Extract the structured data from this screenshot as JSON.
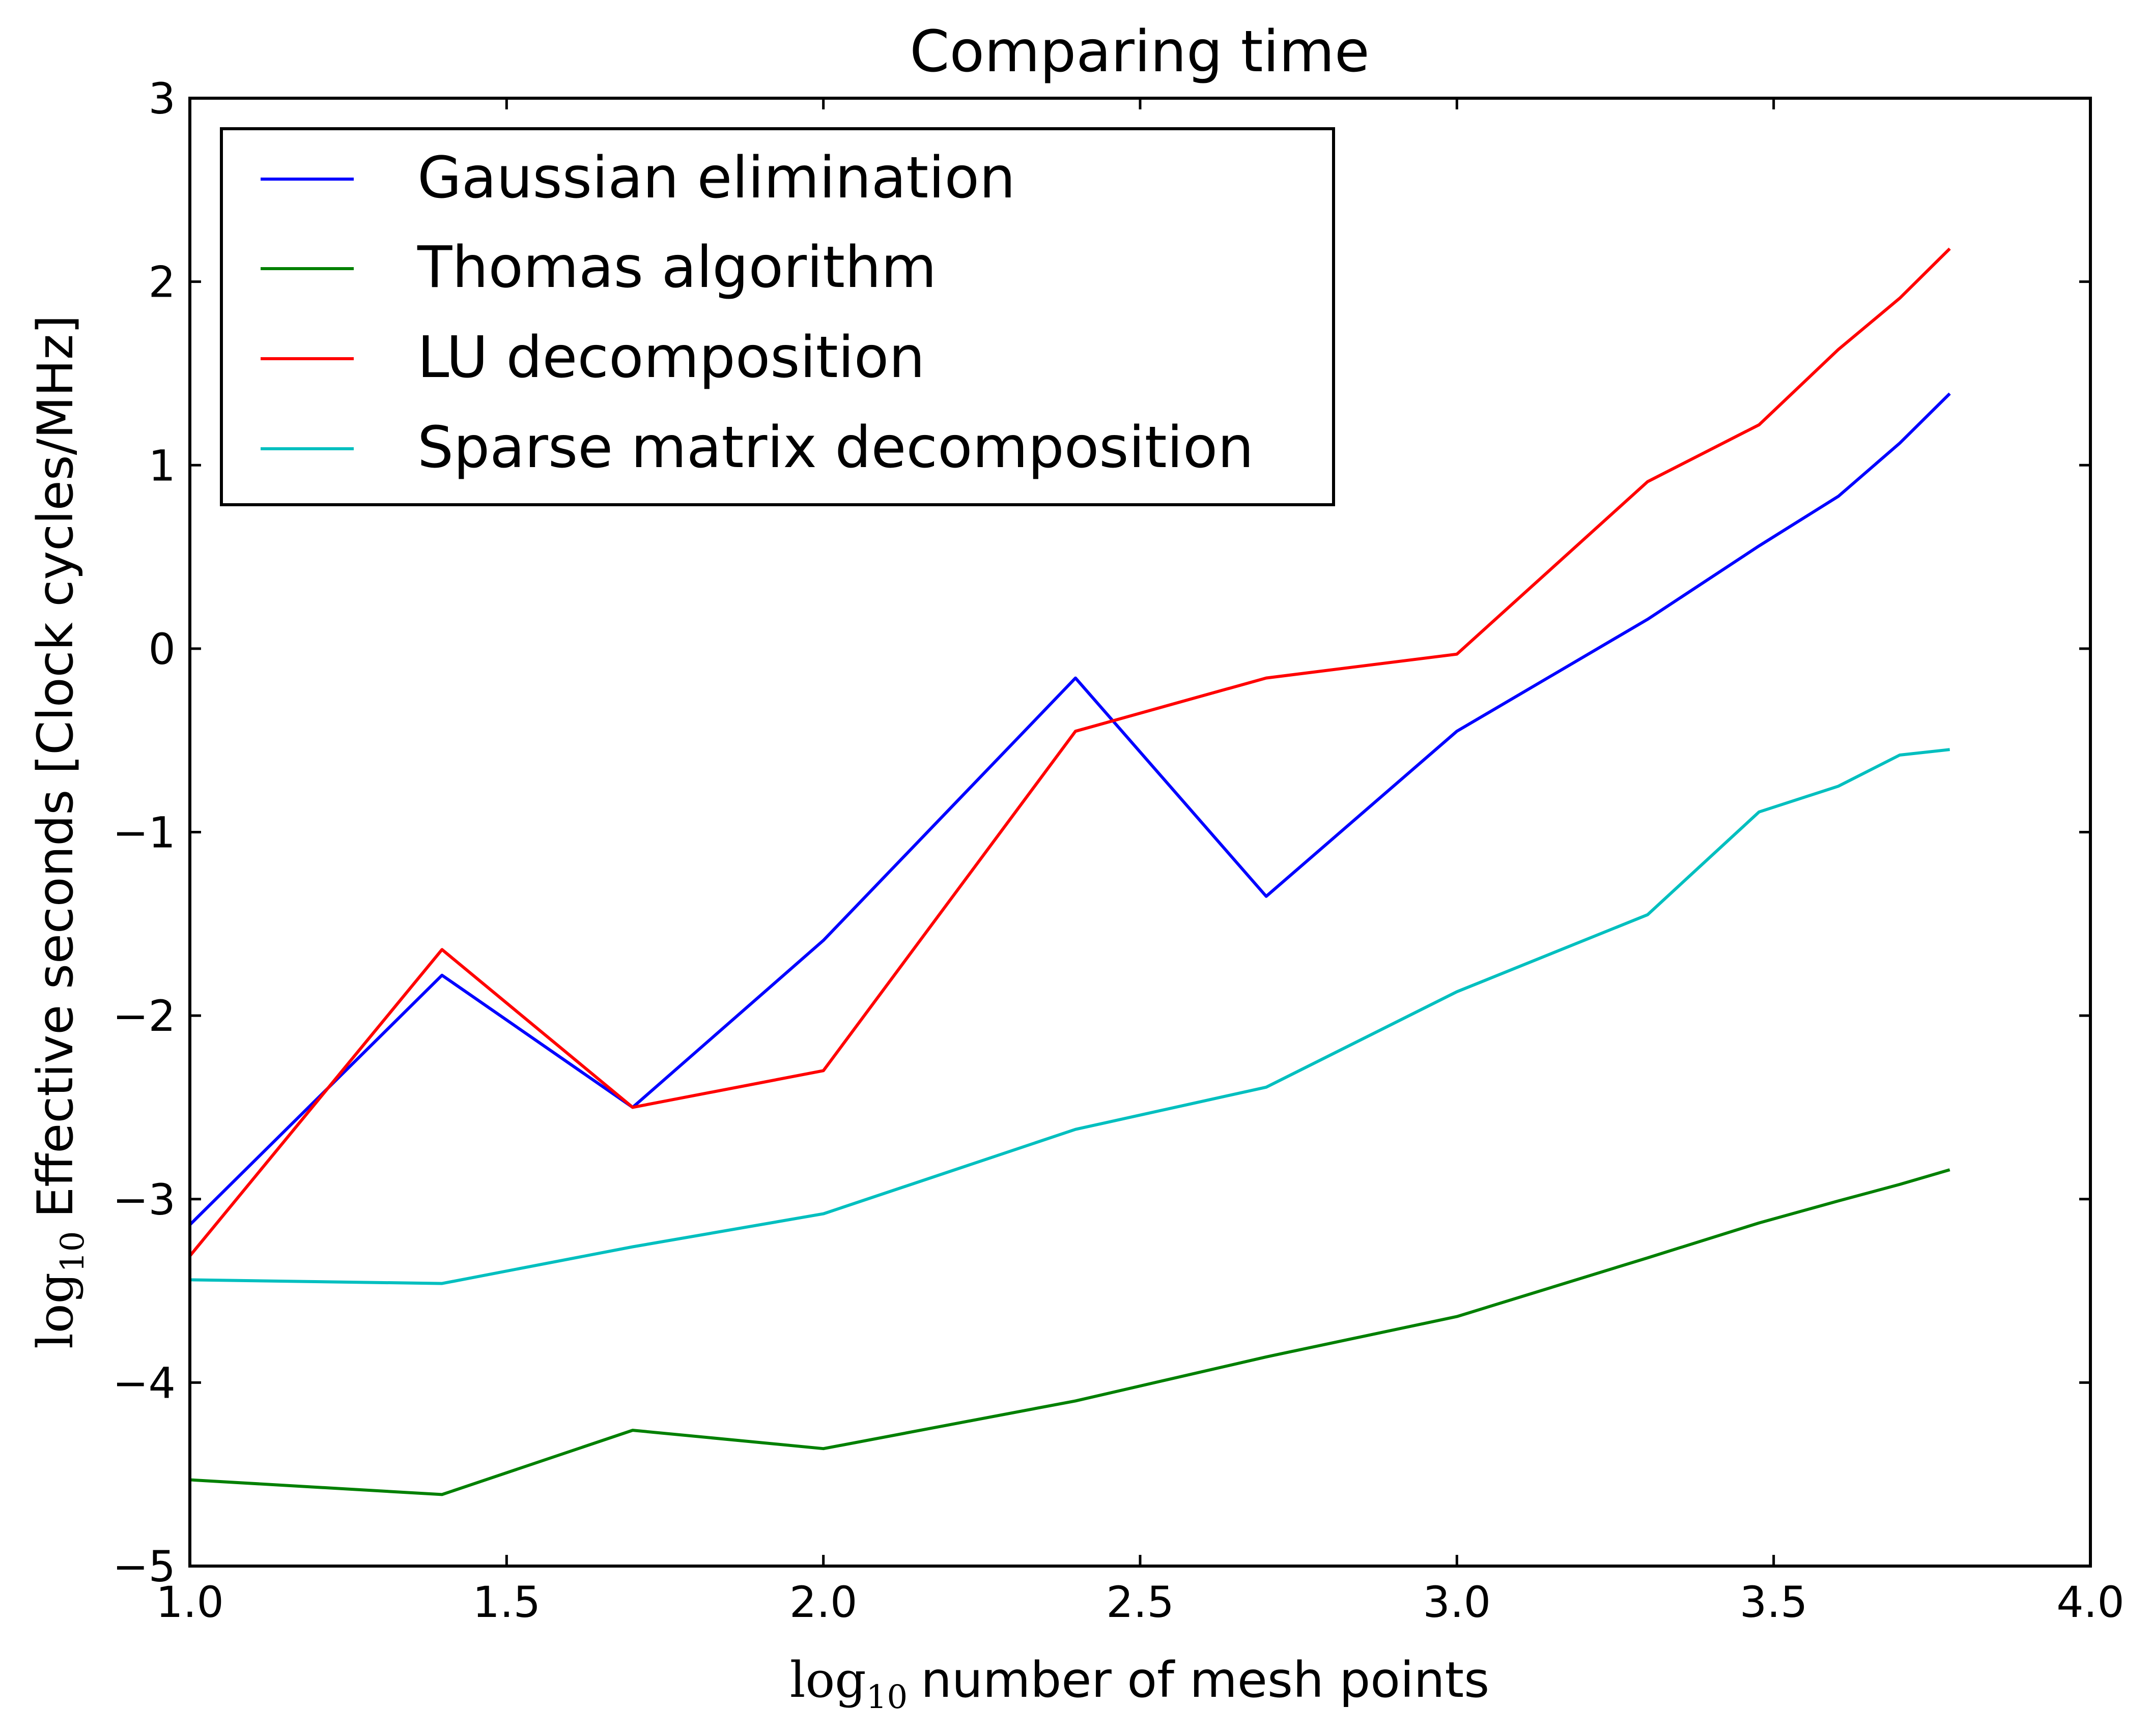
{
  "chart_data": {
    "type": "line",
    "title": "Comparing time",
    "xlabel": {
      "prefix": "log",
      "subscript": "10",
      "text": "number of mesh points"
    },
    "ylabel": {
      "prefix": "log",
      "subscript": "10",
      "text": "Effective seconds [Clock cycles/MHz]"
    },
    "xlim": [
      1.0,
      4.0
    ],
    "ylim": [
      -5,
      3
    ],
    "xticks": [
      1.0,
      1.5,
      2.0,
      2.5,
      3.0,
      3.5,
      4.0
    ],
    "xtick_labels": [
      "1.0",
      "1.5",
      "2.0",
      "2.5",
      "3.0",
      "3.5",
      "4.0"
    ],
    "yticks": [
      3,
      2,
      1,
      0,
      -1,
      -2,
      -3,
      -4,
      -5
    ],
    "ytick_labels": [
      "3",
      "2",
      "1",
      "0",
      "−1",
      "−2",
      "−3",
      "−4",
      "−5"
    ],
    "grid": false,
    "legend_position": "top-left",
    "x": [
      1.0,
      1.398,
      1.699,
      2.0,
      2.398,
      2.699,
      3.0,
      3.301,
      3.477,
      3.602,
      3.699,
      3.778
    ],
    "series": [
      {
        "name": "Gaussian elimination",
        "color": "#0000ff",
        "values": [
          -3.14,
          -1.78,
          -2.5,
          -1.59,
          -0.16,
          -1.35,
          -0.45,
          0.16,
          0.56,
          0.83,
          1.12,
          1.39
        ]
      },
      {
        "name": "Thomas algorithm",
        "color": "#008000",
        "values": [
          -4.53,
          -4.61,
          -4.26,
          -4.36,
          -4.1,
          -3.86,
          -3.64,
          -3.32,
          -3.13,
          -3.01,
          -2.92,
          -2.84
        ]
      },
      {
        "name": "LU decomposition",
        "color": "#ff0000",
        "values": [
          -3.31,
          -1.64,
          -2.5,
          -2.3,
          -0.45,
          -0.16,
          -0.03,
          0.91,
          1.22,
          1.63,
          1.91,
          2.18
        ]
      },
      {
        "name": "Sparse matrix decomposition",
        "color": "#00bfbf",
        "values": [
          -3.44,
          -3.46,
          -3.26,
          -3.08,
          -2.62,
          -2.39,
          -1.87,
          -1.45,
          -0.89,
          -0.75,
          -0.58,
          -0.55
        ]
      }
    ]
  }
}
